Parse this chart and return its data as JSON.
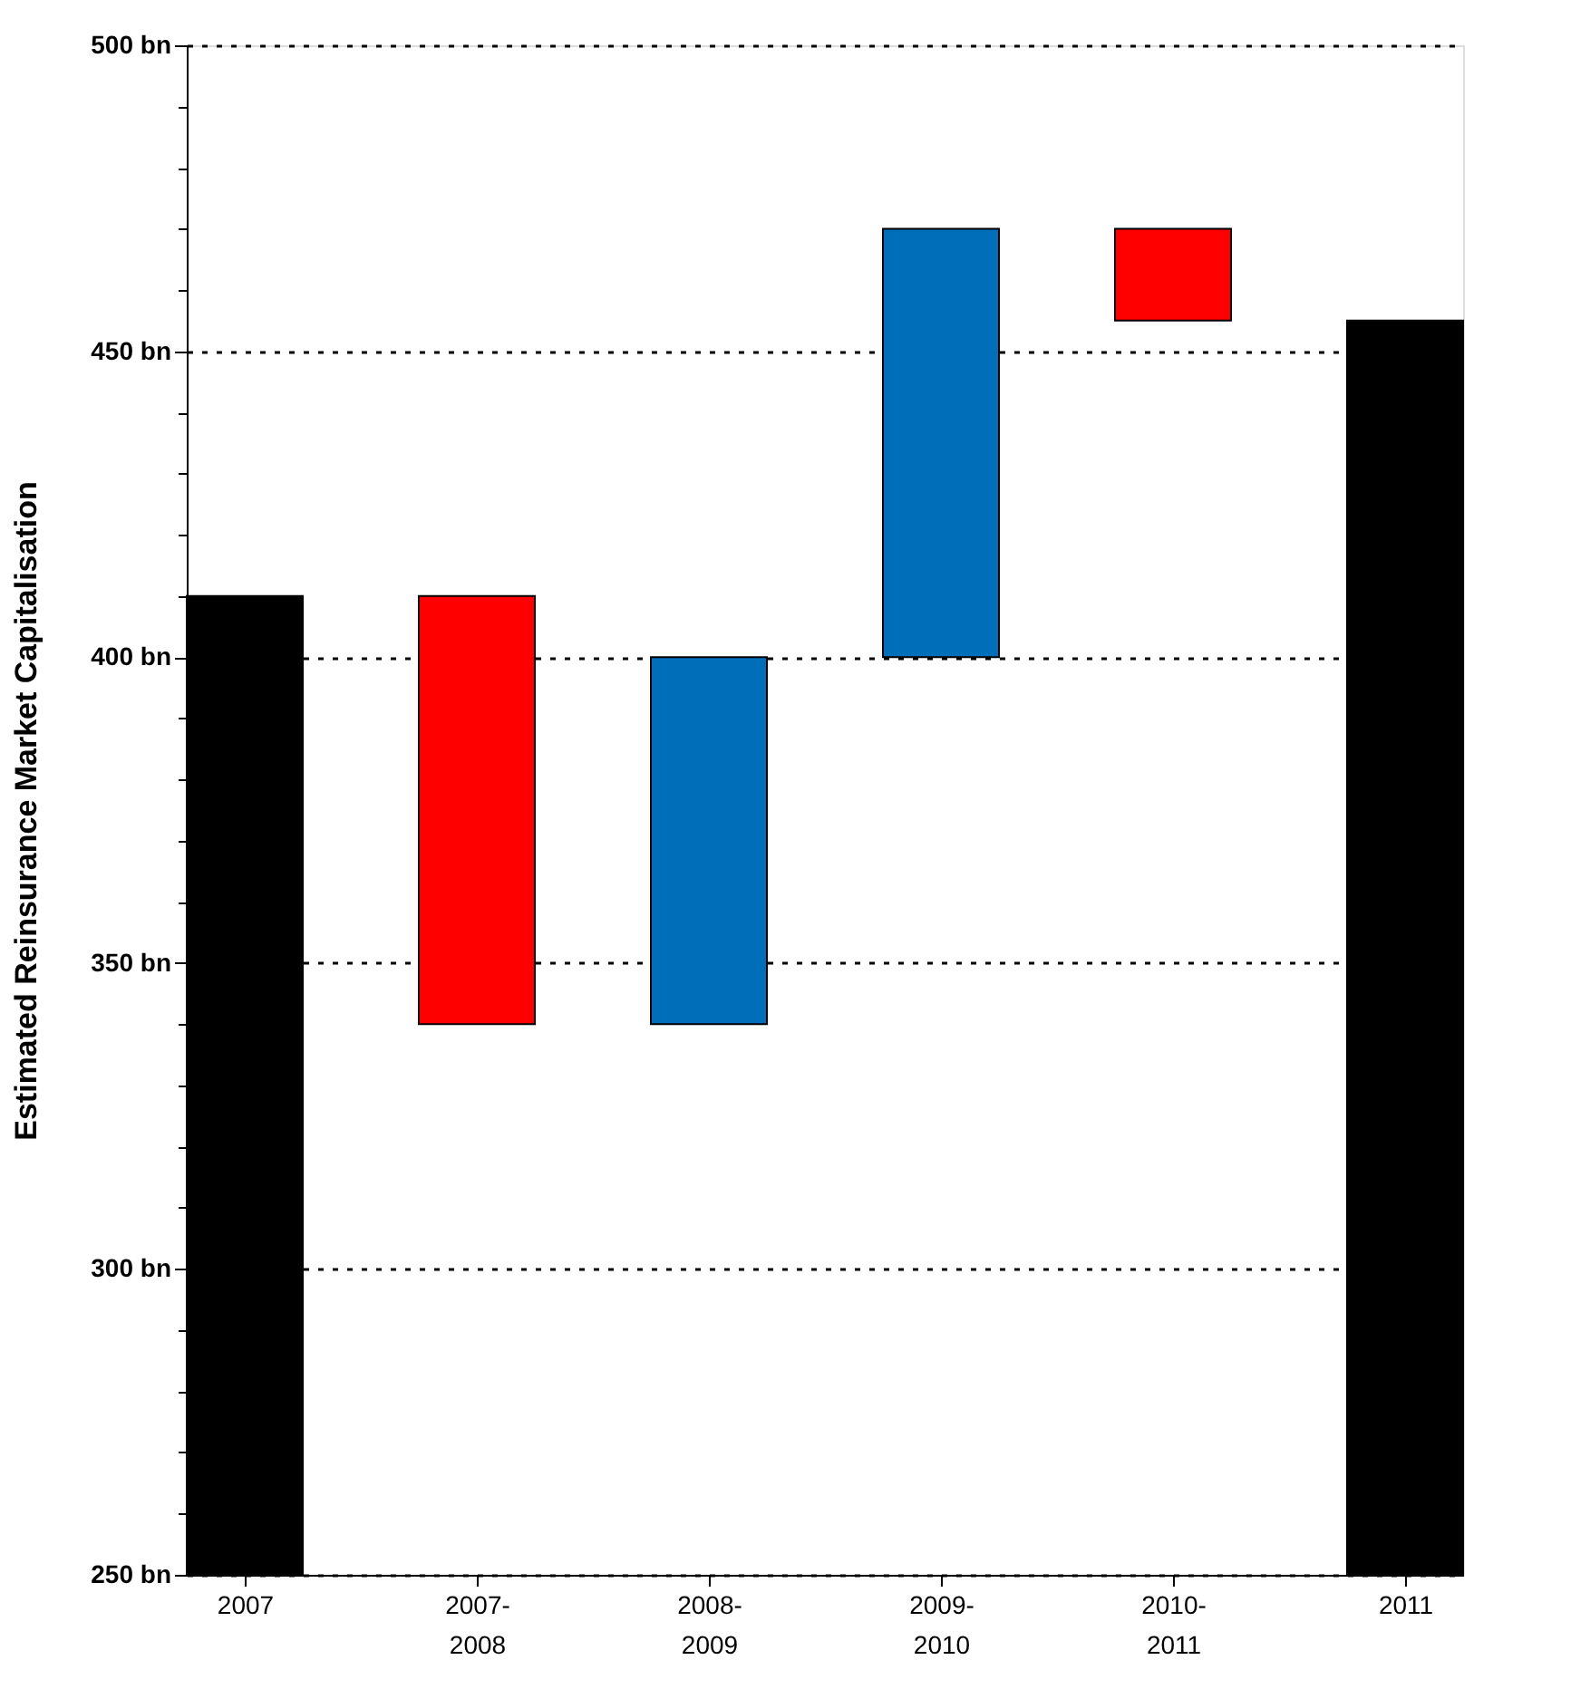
{
  "chart_data": {
    "type": "bar",
    "ylabel": "Estimated Reinsurance Market Capitalisation",
    "categories": [
      "2007",
      null,
      "2007-2008",
      null,
      "2008-2009",
      null,
      "2009-2010",
      null,
      "2010-2011",
      null,
      "2011"
    ],
    "values": [
      410,
      null,
      -70,
      null,
      60,
      null,
      70,
      null,
      -15,
      null,
      455
    ],
    "base": [
      null,
      null,
      410,
      null,
      340,
      null,
      400,
      null,
      470,
      null,
      null
    ],
    "colors": [
      "#000000",
      null,
      "#ff0000",
      null,
      "#006eb9",
      null,
      "#006eb9",
      null,
      "#ff0000",
      null,
      "#000000"
    ],
    "ylim": [
      250,
      500
    ],
    "yticks": [
      {
        "value": 250,
        "label": "250 bn"
      },
      {
        "value": 260,
        "label": null
      },
      {
        "value": 270,
        "label": null
      },
      {
        "value": 280,
        "label": null
      },
      {
        "value": 290,
        "label": null
      },
      {
        "value": 300,
        "label": "300 bn"
      },
      {
        "value": 310,
        "label": null
      },
      {
        "value": 320,
        "label": null
      },
      {
        "value": 330,
        "label": null
      },
      {
        "value": 340,
        "label": null
      },
      {
        "value": 350,
        "label": "350 bn"
      },
      {
        "value": 360,
        "label": null
      },
      {
        "value": 370,
        "label": null
      },
      {
        "value": 380,
        "label": null
      },
      {
        "value": 390,
        "label": null
      },
      {
        "value": 400,
        "label": "400 bn"
      },
      {
        "value": 410,
        "label": null
      },
      {
        "value": 420,
        "label": null
      },
      {
        "value": 430,
        "label": null
      },
      {
        "value": 440,
        "label": null
      },
      {
        "value": 450,
        "label": "450 bn"
      },
      {
        "value": 460,
        "label": null
      },
      {
        "value": 470,
        "label": null
      },
      {
        "value": 480,
        "label": null
      },
      {
        "value": 490,
        "label": null
      },
      {
        "value": 500,
        "label": "500 bn"
      }
    ],
    "grid": "y"
  }
}
